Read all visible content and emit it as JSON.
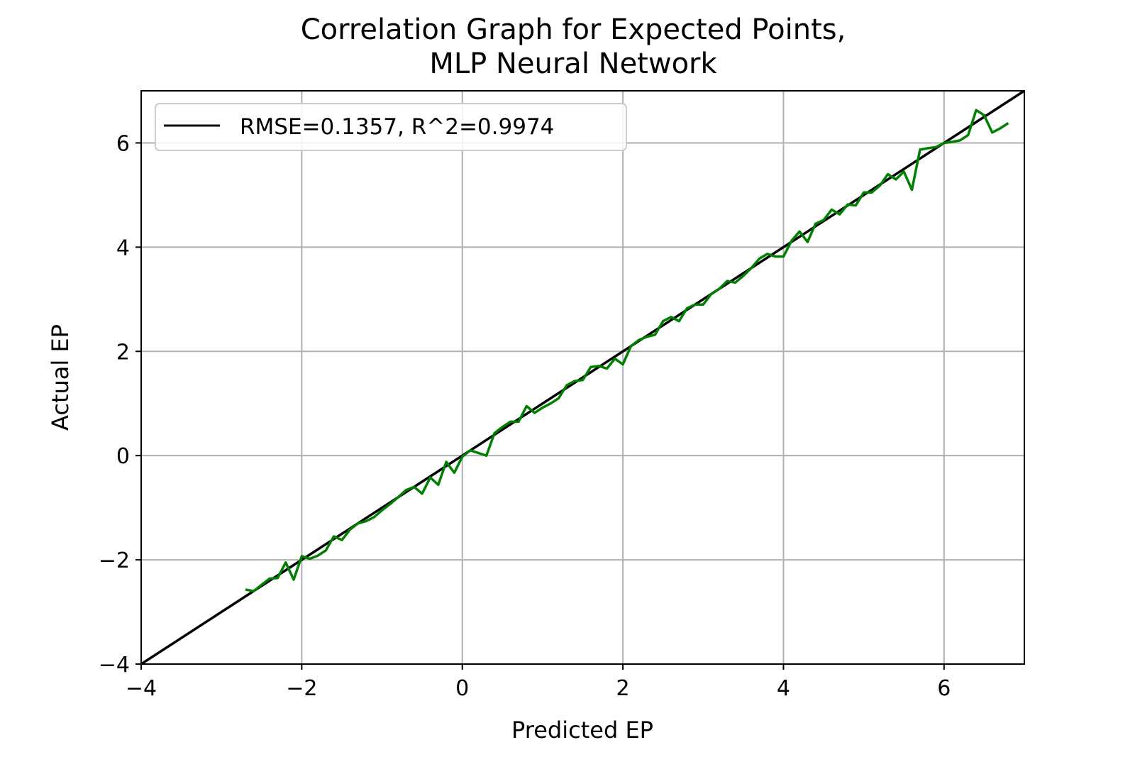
{
  "chart_data": {
    "type": "line",
    "title_lines": [
      "Correlation Graph for Expected Points,",
      "MLP Neural Network"
    ],
    "xlabel": "Predicted EP",
    "ylabel": "Actual EP",
    "xlim": [
      -4,
      7
    ],
    "ylim": [
      -4,
      7
    ],
    "xticks": [
      -4,
      -2,
      0,
      2,
      4,
      6
    ],
    "yticks": [
      -4,
      -2,
      0,
      2,
      4,
      6
    ],
    "xtick_labels": [
      "−4",
      "−2",
      "0",
      "2",
      "4",
      "6"
    ],
    "ytick_labels": [
      "−4",
      "−2",
      "0",
      "2",
      "4",
      "6"
    ],
    "grid": true,
    "legend": {
      "position": "top-left",
      "entries": [
        "RMSE=0.1357, R^2=0.9974"
      ]
    },
    "series": [
      {
        "name": "RMSE=0.1357, R^2=0.9974",
        "kind": "reference",
        "color": "#000000",
        "x": [
          -4,
          7
        ],
        "y": [
          -4,
          7
        ]
      },
      {
        "kind": "data",
        "color": "#008000",
        "x": [
          -2.7,
          -2.6,
          -2.5,
          -2.4,
          -2.3,
          -2.2,
          -2.1,
          -2.0,
          -1.9,
          -1.8,
          -1.7,
          -1.6,
          -1.5,
          -1.4,
          -1.3,
          -1.2,
          -1.1,
          -1.0,
          -0.9,
          -0.8,
          -0.7,
          -0.6,
          -0.5,
          -0.4,
          -0.3,
          -0.2,
          -0.1,
          0.0,
          0.1,
          0.2,
          0.3,
          0.4,
          0.5,
          0.6,
          0.7,
          0.8,
          0.9,
          1.0,
          1.1,
          1.2,
          1.3,
          1.4,
          1.5,
          1.6,
          1.7,
          1.8,
          1.9,
          2.0,
          2.1,
          2.2,
          2.3,
          2.4,
          2.5,
          2.6,
          2.7,
          2.8,
          2.9,
          3.0,
          3.1,
          3.2,
          3.3,
          3.4,
          3.5,
          3.6,
          3.7,
          3.8,
          3.9,
          4.0,
          4.1,
          4.2,
          4.3,
          4.4,
          4.5,
          4.6,
          4.7,
          4.8,
          4.9,
          5.0,
          5.1,
          5.2,
          5.3,
          5.4,
          5.5,
          5.6,
          5.7,
          5.8,
          5.9,
          6.0,
          6.1,
          6.2,
          6.3,
          6.4,
          6.5,
          6.6,
          6.7,
          6.8
        ],
        "y": [
          -2.57,
          -2.6,
          -2.48,
          -2.36,
          -2.35,
          -2.05,
          -2.38,
          -1.93,
          -1.98,
          -1.92,
          -1.82,
          -1.55,
          -1.62,
          -1.42,
          -1.3,
          -1.26,
          -1.18,
          -1.05,
          -0.93,
          -0.8,
          -0.66,
          -0.6,
          -0.73,
          -0.42,
          -0.56,
          -0.12,
          -0.33,
          -0.02,
          0.1,
          0.05,
          0.0,
          0.43,
          0.55,
          0.65,
          0.65,
          0.95,
          0.82,
          0.92,
          1.0,
          1.1,
          1.35,
          1.43,
          1.45,
          1.7,
          1.72,
          1.67,
          1.86,
          1.75,
          2.1,
          2.22,
          2.28,
          2.32,
          2.58,
          2.66,
          2.58,
          2.83,
          2.9,
          2.9,
          3.1,
          3.2,
          3.35,
          3.32,
          3.45,
          3.6,
          3.78,
          3.87,
          3.82,
          3.82,
          4.12,
          4.3,
          4.1,
          4.45,
          4.52,
          4.72,
          4.63,
          4.82,
          4.8,
          5.05,
          5.05,
          5.18,
          5.4,
          5.3,
          5.45,
          5.1,
          5.87,
          5.9,
          5.92,
          6.0,
          6.02,
          6.05,
          6.15,
          6.63,
          6.53,
          6.2,
          6.28,
          6.38
        ]
      }
    ]
  }
}
